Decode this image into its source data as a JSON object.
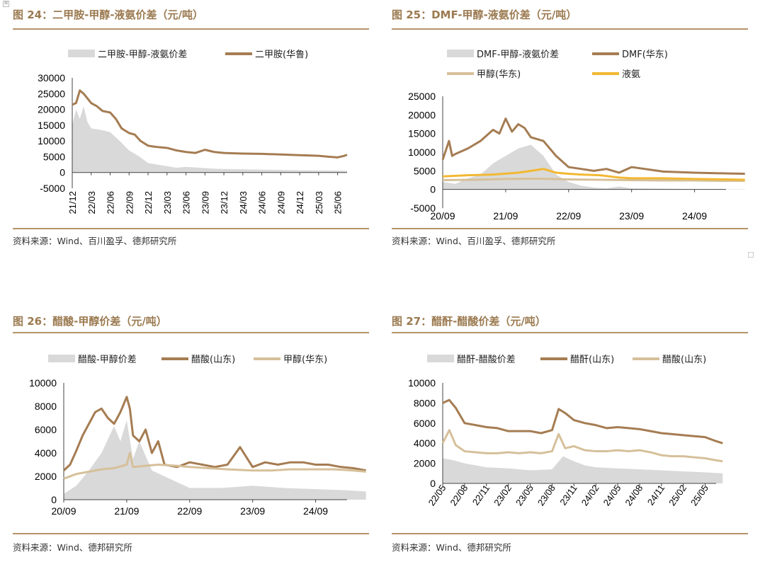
{
  "colors": {
    "brown": "#a57c52",
    "tan": "#d6c09a",
    "gray": "#d9d9d9",
    "yellow": "#f2b833",
    "rule": "#b5946a",
    "title": "#9b7a50"
  },
  "panels": [
    {
      "title": "图 24：二甲胺-甲醇-液氨价差（元/吨）",
      "source": "资料来源：Wind、百川盈孚、德邦研究所",
      "legend": [
        "二甲胺-甲醇-液氨价差",
        "二甲胺(华鲁)"
      ],
      "chart_data": {
        "type": "line",
        "x_ticks": [
          "21/12",
          "22/03",
          "22/06",
          "22/09",
          "22/12",
          "23/03",
          "23/06",
          "23/09",
          "23/12",
          "24/03",
          "24/06",
          "24/09",
          "24/12",
          "25/03",
          "25/06"
        ],
        "y_ticks": [
          "30000",
          "25000",
          "20000",
          "15000",
          "10000",
          "5000",
          "0",
          "-5000"
        ],
        "ylim": [
          -5000,
          30000
        ],
        "tick_label_rotation": "vertical",
        "series": [
          {
            "name": "二甲胺-甲醇-液氨价差",
            "kind": "area",
            "x": [
              0,
              0.2,
              0.4,
              0.6,
              0.8,
              1,
              1.5,
              2,
              2.5,
              3,
              3.5,
              4,
              4.5,
              5,
              5.5,
              6,
              6.5,
              7,
              7.5,
              8,
              9,
              10,
              11,
              12,
              13,
              14,
              14.5
            ],
            "y": [
              15000,
              20000,
              17000,
              21000,
              16000,
              14000,
              13500,
              12800,
              10000,
              7000,
              5200,
              3000,
              2500,
              2000,
              1500,
              1800,
              1600,
              1400,
              1200,
              1100,
              1000,
              900,
              800,
              700,
              650,
              600,
              550
            ]
          },
          {
            "name": "二甲胺(华鲁)",
            "kind": "line",
            "x": [
              0,
              0.2,
              0.4,
              0.6,
              0.8,
              1,
              1.3,
              1.6,
              2,
              2.3,
              2.6,
              3,
              3.3,
              3.6,
              4,
              4.3,
              4.6,
              5,
              5.5,
              6,
              6.5,
              7,
              7.5,
              8,
              9,
              10,
              11,
              12,
              13,
              13.5,
              14,
              14.3,
              14.5
            ],
            "y": [
              21500,
              22000,
              26000,
              25000,
              23500,
              22000,
              21000,
              19500,
              19000,
              17000,
              14000,
              12500,
              12000,
              10000,
              8500,
              8200,
              8000,
              7800,
              7000,
              6500,
              6200,
              7200,
              6500,
              6200,
              6000,
              5900,
              5700,
              5500,
              5300,
              5000,
              4800,
              5200,
              5600
            ]
          }
        ]
      }
    },
    {
      "title": "图 25：DMF-甲醇-液氨价差（元/吨）",
      "source": "资料来源：Wind、百川盈孚、德邦研究所",
      "legend": [
        "DMF-甲醇-液氨价差",
        "DMF(华东)",
        "甲醇(华东)",
        "液氨"
      ],
      "chart_data": {
        "type": "line",
        "x_ticks": [
          "20/09",
          "21/09",
          "22/09",
          "23/09",
          "24/09"
        ],
        "y_ticks": [
          "25000",
          "20000",
          "15000",
          "10000",
          "5000",
          "0",
          "-5000"
        ],
        "ylim": [
          -5000,
          25000
        ],
        "series": [
          {
            "name": "DMF-甲醇-液氨价差",
            "kind": "area",
            "x": [
              0,
              0.2,
              0.4,
              0.6,
              0.8,
              1,
              1.2,
              1.4,
              1.6,
              1.8,
              2,
              2.2,
              2.4,
              2.6,
              2.8,
              3,
              3.5,
              4,
              4.5,
              4.8
            ],
            "y": [
              2000,
              1500,
              3000,
              4000,
              7000,
              9000,
              11000,
              12000,
              9000,
              4000,
              2000,
              1000,
              500,
              300,
              800,
              300,
              200,
              100,
              100,
              100
            ]
          },
          {
            "name": "DMF(华东)",
            "kind": "line",
            "x": [
              0,
              0.1,
              0.15,
              0.2,
              0.4,
              0.6,
              0.8,
              0.9,
              1.0,
              1.1,
              1.2,
              1.3,
              1.4,
              1.6,
              1.8,
              2,
              2.2,
              2.4,
              2.6,
              2.8,
              3,
              3.5,
              4,
              4.5,
              4.8
            ],
            "y": [
              8000,
              13000,
              9000,
              9500,
              11000,
              13000,
              16000,
              15000,
              19000,
              15500,
              17500,
              16500,
              14000,
              13000,
              9000,
              6000,
              5500,
              5000,
              5500,
              4500,
              6000,
              4800,
              4500,
              4300,
              4200
            ]
          },
          {
            "name": "甲醇(华东)",
            "kind": "line",
            "x": [
              0,
              0.5,
              1,
              1.5,
              2,
              2.5,
              3,
              3.5,
              4,
              4.5,
              4.8
            ],
            "y": [
              2500,
              2600,
              2800,
              2900,
              2700,
              2600,
              2500,
              2400,
              2400,
              2300,
              2300
            ]
          },
          {
            "name": "液氨",
            "kind": "line",
            "x": [
              0,
              0.4,
              0.8,
              1.2,
              1.4,
              1.6,
              1.8,
              2,
              2.2,
              2.5,
              2.8,
              3,
              3.5,
              4,
              4.5,
              4.8
            ],
            "y": [
              3500,
              3800,
              4000,
              4500,
              5000,
              5500,
              4500,
              4200,
              4000,
              3800,
              3200,
              3000,
              3000,
              2800,
              2700,
              2600
            ]
          }
        ]
      }
    },
    {
      "title": "图 26：醋酸-甲醇价差（元/吨）",
      "source": "资料来源：Wind、德邦研究所",
      "legend": [
        "醋酸-甲醇价差",
        "醋酸(山东)",
        "甲醇(华东)"
      ],
      "chart_data": {
        "type": "line",
        "x_ticks": [
          "20/09",
          "21/09",
          "22/09",
          "23/09",
          "24/09"
        ],
        "y_ticks": [
          "10000",
          "8000",
          "6000",
          "4000",
          "2000",
          "0"
        ],
        "ylim": [
          0,
          10000
        ],
        "series": [
          {
            "name": "醋酸-甲醇价差",
            "kind": "area",
            "x": [
              0,
              0.2,
              0.4,
              0.6,
              0.8,
              0.9,
              1,
              1.1,
              1.2,
              1.4,
              1.6,
              1.8,
              2,
              2.5,
              3,
              3.5,
              4,
              4.5,
              4.8
            ],
            "y": [
              500,
              1200,
              2500,
              4000,
              6300,
              5000,
              6800,
              3500,
              5000,
              2500,
              2000,
              1500,
              1000,
              1000,
              1200,
              1000,
              900,
              800,
              700
            ]
          },
          {
            "name": "醋酸(山东)",
            "kind": "line",
            "x": [
              0,
              0.1,
              0.2,
              0.3,
              0.4,
              0.5,
              0.6,
              0.7,
              0.8,
              0.9,
              1.0,
              1.05,
              1.1,
              1.2,
              1.3,
              1.4,
              1.5,
              1.6,
              1.8,
              2,
              2.2,
              2.4,
              2.6,
              2.8,
              3,
              3.2,
              3.4,
              3.6,
              3.8,
              4,
              4.2,
              4.4,
              4.6,
              4.8
            ],
            "y": [
              2500,
              3000,
              4200,
              5500,
              6500,
              7500,
              7800,
              7000,
              6500,
              7500,
              8800,
              7800,
              5500,
              5000,
              6000,
              4000,
              5000,
              3000,
              2800,
              3200,
              3000,
              2800,
              3000,
              4500,
              2800,
              3200,
              3000,
              3200,
              3200,
              3000,
              3000,
              2800,
              2700,
              2500
            ]
          },
          {
            "name": "甲醇(华东)",
            "kind": "line",
            "x": [
              0,
              0.2,
              0.4,
              0.6,
              0.8,
              1.0,
              1.05,
              1.1,
              1.3,
              1.5,
              1.8,
              2,
              2.3,
              2.6,
              3,
              3.3,
              3.6,
              4,
              4.3,
              4.6,
              4.8
            ],
            "y": [
              1800,
              2200,
              2400,
              2600,
              2700,
              3000,
              4000,
              2800,
              2900,
              3000,
              2900,
              2800,
              2700,
              2600,
              2500,
              2500,
              2600,
              2600,
              2600,
              2500,
              2400
            ]
          }
        ]
      }
    },
    {
      "title": "图 27：醋酐-醋酸价差（元/吨）",
      "source": "资料来源：Wind、德邦研究所",
      "legend": [
        "醋酐-醋酸价差",
        "醋酐(山东)",
        "醋酸(山东)"
      ],
      "chart_data": {
        "type": "line",
        "x_ticks": [
          "22/05",
          "22/08",
          "22/11",
          "23/02",
          "23/05",
          "23/08",
          "23/11",
          "24/02",
          "24/05",
          "24/08",
          "24/11",
          "25/02",
          "25/05"
        ],
        "y_ticks": [
          "10000",
          "8000",
          "6000",
          "4000",
          "2000",
          "0"
        ],
        "ylim": [
          0,
          10000
        ],
        "tick_label_rotation": "diagonal",
        "series": [
          {
            "name": "醋酐-醋酸价差",
            "kind": "area",
            "x": [
              0,
              0.5,
              1,
              1.5,
              2,
              3,
              4,
              5,
              5.5,
              6,
              6.5,
              7,
              8,
              9,
              10,
              11,
              12,
              12.8
            ],
            "y": [
              2500,
              2300,
              2000,
              1800,
              1600,
              1500,
              1300,
              1400,
              2700,
              2200,
              1800,
              1600,
              1500,
              1400,
              1300,
              1200,
              1100,
              1000
            ]
          },
          {
            "name": "醋酐(山东)",
            "kind": "line",
            "x": [
              0,
              0.3,
              0.6,
              1,
              1.5,
              2,
              2.5,
              3,
              3.5,
              4,
              4.5,
              5,
              5.3,
              5.6,
              6,
              6.5,
              7,
              7.5,
              8,
              8.5,
              9,
              9.5,
              10,
              10.5,
              11,
              11.5,
              12,
              12.5,
              12.8
            ],
            "y": [
              8000,
              8300,
              7500,
              6000,
              5800,
              5600,
              5500,
              5200,
              5200,
              5200,
              5000,
              5300,
              7400,
              7000,
              6300,
              6000,
              5800,
              5500,
              5600,
              5500,
              5400,
              5200,
              5000,
              4900,
              4800,
              4700,
              4600,
              4200,
              4000
            ]
          },
          {
            "name": "醋酸(山东)",
            "kind": "line",
            "x": [
              0,
              0.3,
              0.6,
              1,
              1.5,
              2,
              2.5,
              3,
              3.5,
              4,
              4.5,
              5,
              5.3,
              5.6,
              6,
              6.5,
              7,
              7.5,
              8,
              8.5,
              9,
              9.5,
              10,
              10.5,
              11,
              11.5,
              12,
              12.5,
              12.8
            ],
            "y": [
              4000,
              5300,
              3800,
              3200,
              3100,
              3000,
              3000,
              3100,
              3000,
              3100,
              3000,
              3200,
              4900,
              3500,
              3700,
              3300,
              3200,
              3200,
              3300,
              3200,
              3300,
              3100,
              2800,
              2700,
              2700,
              2600,
              2500,
              2300,
              2200
            ]
          }
        ]
      }
    }
  ]
}
